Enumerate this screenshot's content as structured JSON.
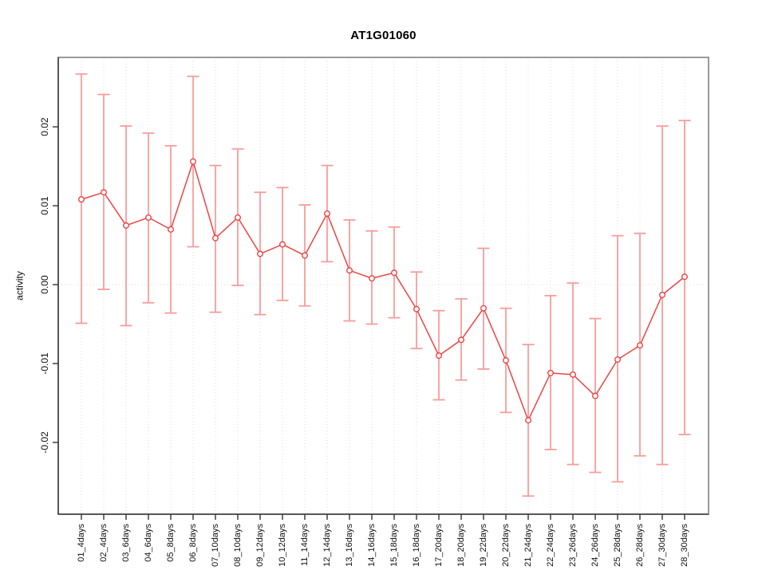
{
  "chart_data": {
    "type": "line",
    "title": "AT1G01060",
    "xlabel": "",
    "ylabel": "activity",
    "legend": "none",
    "grid": "vertical dotted gridlines at each category plus dotted zero line",
    "categories": [
      "01_4days",
      "02_4days",
      "03_6days",
      "04_6days",
      "05_8days",
      "06_8days",
      "07_10days",
      "08_10days",
      "09_12days",
      "10_12days",
      "11_14days",
      "12_14days",
      "13_16days",
      "14_16days",
      "15_18days",
      "16_18days",
      "17_20days",
      "18_20days",
      "19_22days",
      "20_22days",
      "21_24days",
      "22_24days",
      "23_26days",
      "24_26days",
      "25_28days",
      "26_28days",
      "27_30days",
      "28_30days"
    ],
    "series": [
      {
        "name": "activity",
        "values": [
          0.0108,
          0.0117,
          0.0075,
          0.0085,
          0.007,
          0.0156,
          0.0059,
          0.0085,
          0.0039,
          0.0051,
          0.0037,
          0.009,
          0.0018,
          0.0008,
          0.0015,
          -0.0031,
          -0.009,
          -0.007,
          -0.003,
          -0.0096,
          -0.0172,
          -0.0112,
          -0.0114,
          -0.0141,
          -0.0095,
          -0.0077,
          -0.0013,
          0.001
        ],
        "upper": [
          0.0267,
          0.0241,
          0.0201,
          0.0192,
          0.0176,
          0.0264,
          0.0151,
          0.0172,
          0.0117,
          0.0123,
          0.0101,
          0.0151,
          0.0082,
          0.0068,
          0.0073,
          0.0016,
          -0.0033,
          -0.0018,
          0.0046,
          -0.003,
          -0.0076,
          -0.0014,
          0.0002,
          -0.0043,
          0.0062,
          0.0065,
          0.0201,
          0.0208
        ],
        "lower": [
          -0.0049,
          -0.0006,
          -0.0052,
          -0.0023,
          -0.0036,
          0.0048,
          -0.0035,
          -0.0001,
          -0.0038,
          -0.002,
          -0.0027,
          0.0029,
          -0.0046,
          -0.005,
          -0.0042,
          -0.0081,
          -0.0146,
          -0.0121,
          -0.0107,
          -0.0162,
          -0.0268,
          -0.0209,
          -0.0228,
          -0.0238,
          -0.025,
          -0.0217,
          -0.0228,
          -0.019
        ]
      }
    ],
    "ylim": [
      -0.0291,
      0.0288
    ],
    "yticks": [
      0.02,
      0.01,
      0,
      -0.01,
      -0.02
    ],
    "ytick_labels": [
      "0.02",
      "0.01",
      "0.00",
      "-0.01",
      "-0.02"
    ],
    "colors": {
      "line": "#ee4444",
      "point_stroke": "#ee4444",
      "point_fill": "#ffffff",
      "error_bar": "#f79c9c",
      "grid": "#dcdcdc",
      "frame": "#999999",
      "axis": "#333333",
      "text": "#111111"
    }
  }
}
